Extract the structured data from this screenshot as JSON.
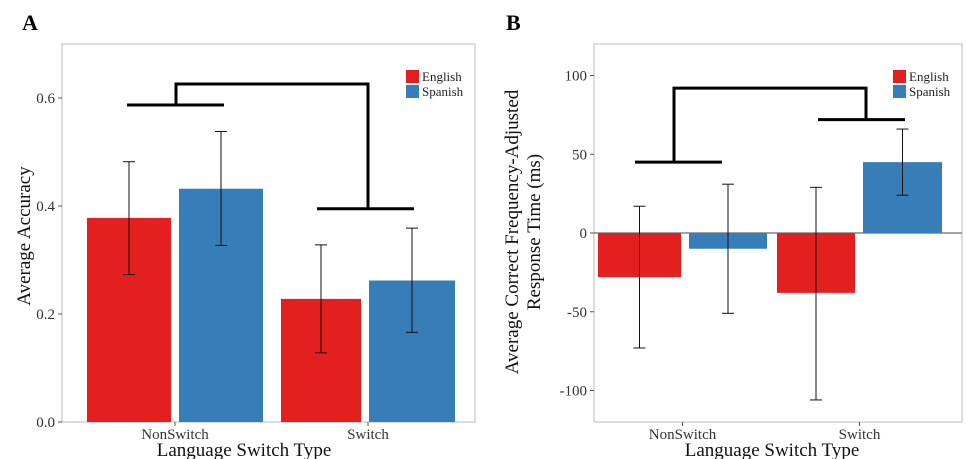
{
  "colors": {
    "english": "#e41f1f",
    "spanish": "#377eb8",
    "frame": "#b9b9b9",
    "grid": "#ebebeb"
  },
  "chart_data": [
    {
      "panel": "A",
      "type": "bar",
      "xlabel": "Language Switch Type",
      "ylabel": "Average Accuracy",
      "categories": [
        "NonSwitch",
        "Switch"
      ],
      "ylim": [
        0,
        0.7
      ],
      "yticks": [
        "0.0",
        "0.2",
        "0.4",
        "0.6"
      ],
      "ytick_values": [
        0,
        0.2,
        0.4,
        0.6
      ],
      "series": [
        {
          "name": "English",
          "values": [
            0.378,
            0.228
          ],
          "err_low": [
            0.273,
            0.128
          ],
          "err_high": [
            0.482,
            0.328
          ]
        },
        {
          "name": "Spanish",
          "values": [
            0.432,
            0.262
          ],
          "err_low": [
            0.327,
            0.166
          ],
          "err_high": [
            0.538,
            0.359
          ]
        }
      ],
      "legend": {
        "position": "top-right",
        "entries": [
          "English",
          "Spanish"
        ]
      },
      "significance": {
        "label": "*",
        "left_level": 0.587,
        "right_level": 0.395,
        "top_level": 0.626
      }
    },
    {
      "panel": "B",
      "type": "bar",
      "xlabel": "Language Switch Type",
      "ylabel_line1": "Average Correct Frequency-Adjusted",
      "ylabel_line2": "Response Time (ms)",
      "categories": [
        "NonSwitch",
        "Switch"
      ],
      "ylim": [
        -120,
        120
      ],
      "yticks": [
        "-100",
        "-50",
        "0",
        "50",
        "100"
      ],
      "ytick_values": [
        -100,
        -50,
        0,
        50,
        100
      ],
      "series": [
        {
          "name": "English",
          "values": [
            -28,
            -38
          ],
          "err_low": [
            -73,
            -106
          ],
          "err_high": [
            17,
            29
          ]
        },
        {
          "name": "Spanish",
          "values": [
            -10,
            45
          ],
          "err_low": [
            -51,
            24
          ],
          "err_high": [
            31,
            66
          ]
        }
      ],
      "legend": {
        "position": "top-right",
        "entries": [
          "English",
          "Spanish"
        ]
      },
      "significance": {
        "label": "†",
        "left_level": 45,
        "right_level": 72,
        "top_level": 92
      }
    }
  ]
}
